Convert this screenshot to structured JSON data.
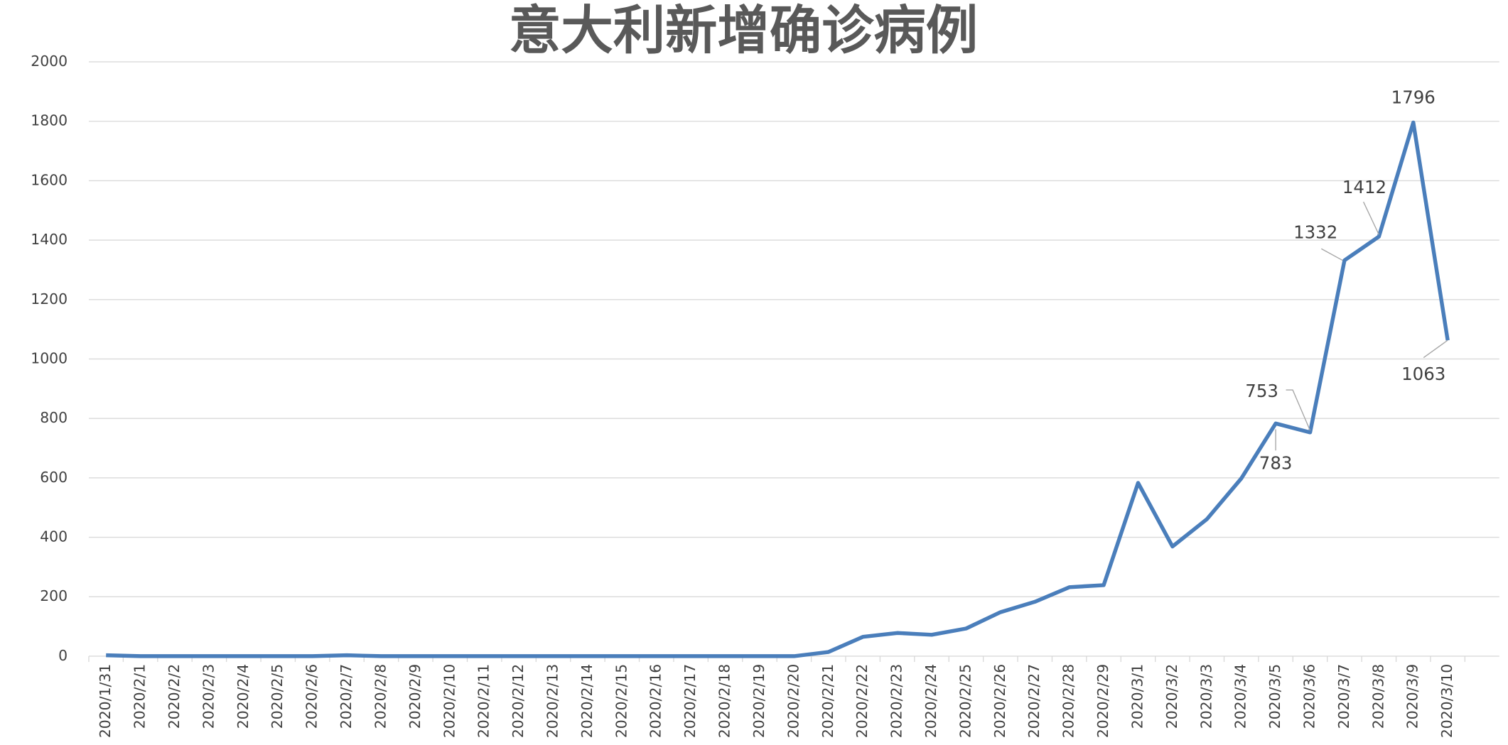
{
  "chart_data": {
    "type": "line",
    "title": "意大利新增确诊病例",
    "categories": [
      "2020/1/31",
      "2020/2/1",
      "2020/2/2",
      "2020/2/3",
      "2020/2/4",
      "2020/2/5",
      "2020/2/6",
      "2020/2/7",
      "2020/2/8",
      "2020/2/9",
      "2020/2/10",
      "2020/2/11",
      "2020/2/12",
      "2020/2/13",
      "2020/2/14",
      "2020/2/15",
      "2020/2/16",
      "2020/2/17",
      "2020/2/18",
      "2020/2/19",
      "2020/2/20",
      "2020/2/21",
      "2020/2/22",
      "2020/2/23",
      "2020/2/24",
      "2020/2/25",
      "2020/2/26",
      "2020/2/27",
      "2020/2/28",
      "2020/2/29",
      "2020/3/1",
      "2020/3/2",
      "2020/3/3",
      "2020/3/4",
      "2020/3/5",
      "2020/3/6",
      "2020/3/7",
      "2020/3/8",
      "2020/3/9",
      "2020/3/10"
    ],
    "values": [
      3,
      0,
      0,
      0,
      0,
      0,
      0,
      3,
      0,
      0,
      0,
      0,
      0,
      0,
      0,
      0,
      0,
      0,
      0,
      0,
      0,
      14,
      65,
      78,
      72,
      93,
      148,
      183,
      232,
      239,
      583,
      369,
      461,
      598,
      783,
      753,
      1332,
      1412,
      1796,
      1063
    ],
    "value_labels": [
      null,
      null,
      null,
      null,
      null,
      null,
      null,
      null,
      null,
      null,
      null,
      null,
      null,
      null,
      null,
      null,
      null,
      null,
      null,
      null,
      null,
      null,
      null,
      null,
      null,
      null,
      null,
      null,
      null,
      null,
      null,
      null,
      null,
      null,
      "783",
      "753",
      "1332",
      "1412",
      "1796",
      "1063"
    ],
    "color": "#4a7ebb",
    "ylim": [
      0,
      2000
    ],
    "yticks": [
      0,
      200,
      400,
      600,
      800,
      1000,
      1200,
      1400,
      1600,
      1800,
      2000
    ],
    "grid": true
  }
}
